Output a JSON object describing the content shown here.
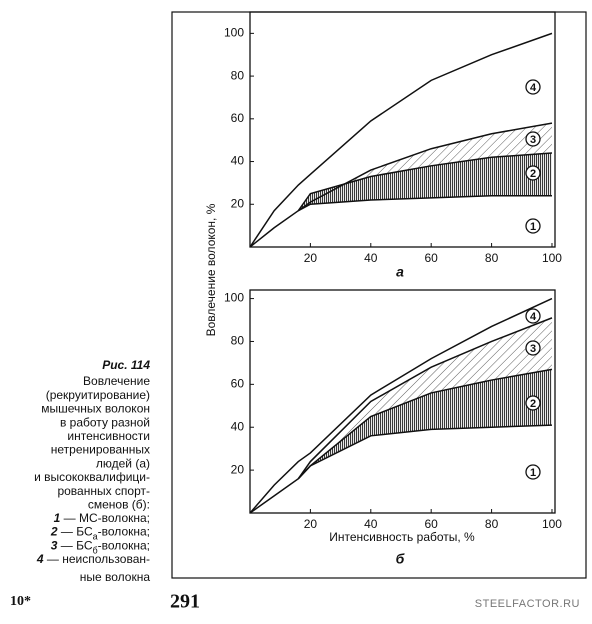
{
  "caption": {
    "figure": "Рис. 114",
    "lines": [
      "Вовлечение",
      "(рекруитирование)",
      "мышечных волокон",
      "в работу разной",
      "интенсивности",
      "нетренированных",
      "людей (а)",
      "и высококвалифици-",
      "рованных спорт-",
      "сменов (б):"
    ],
    "legend": [
      {
        "num": "1",
        "text": " — МС-волокна;"
      },
      {
        "num": "2",
        "text": " — БС",
        "sub": "а",
        "tail": "-волокна;"
      },
      {
        "num": "3",
        "text": " — БС",
        "sub": "б",
        "tail": "-волокна;"
      },
      {
        "num": "4",
        "text": " — неиспользован-"
      }
    ],
    "last_line": "ные волокна"
  },
  "footer": {
    "left": "10*",
    "page": "291",
    "watermark": "STEELFACTOR.RU"
  },
  "chart_data": [
    {
      "type": "line",
      "label": "а",
      "ylabel": "Вовлечение волокон, %",
      "x": [
        0,
        8,
        16,
        20,
        40,
        60,
        80,
        100
      ],
      "series": [
        {
          "name": "4",
          "color": "#111111",
          "values": [
            0,
            17,
            29,
            34,
            59,
            78,
            90,
            100
          ]
        },
        {
          "name": "3",
          "color": "#111111",
          "values": [
            0,
            9,
            17,
            21,
            36,
            46,
            53,
            58
          ]
        },
        {
          "name": "2",
          "color": "#111111",
          "values": [
            null,
            null,
            17,
            25,
            33,
            38,
            42,
            44
          ]
        },
        {
          "name": "1",
          "color": "#111111",
          "values": [
            null,
            null,
            17,
            20,
            22,
            23,
            24,
            24
          ]
        }
      ],
      "xlim": [
        0,
        101
      ],
      "ylim": [
        0,
        110
      ],
      "xticks": [
        20,
        40,
        60,
        80,
        100
      ],
      "yticks": [
        20,
        40,
        60,
        80,
        100
      ]
    },
    {
      "type": "line",
      "label": "б",
      "xlabel": "Интенсивность работы, %",
      "x": [
        0,
        8,
        16,
        20,
        40,
        60,
        80,
        100
      ],
      "series": [
        {
          "name": "4",
          "color": "#111111",
          "values": [
            0,
            13,
            24,
            28,
            55,
            72,
            87,
            100
          ]
        },
        {
          "name": "3",
          "color": "#111111",
          "values": [
            0,
            8,
            16,
            24,
            52,
            68,
            80,
            91
          ]
        },
        {
          "name": "2",
          "color": "#111111",
          "values": [
            null,
            null,
            16,
            22,
            45,
            56,
            62,
            67
          ]
        },
        {
          "name": "1",
          "color": "#111111",
          "values": [
            null,
            null,
            16,
            22,
            36,
            39,
            40,
            41
          ]
        }
      ],
      "xlim": [
        0,
        101
      ],
      "ylim": [
        0,
        104
      ],
      "xticks": [
        20,
        40,
        60,
        80,
        100
      ],
      "yticks": [
        20,
        40,
        60,
        80,
        100
      ]
    }
  ]
}
